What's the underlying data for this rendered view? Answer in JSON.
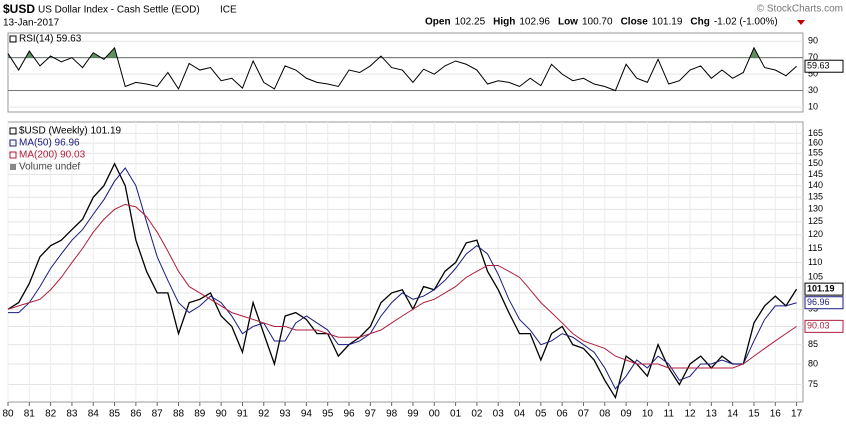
{
  "header": {
    "symbol": "$USD",
    "name": "US Dollar Index - Cash Settle (EOD)",
    "exchange": "ICE",
    "date": "13-Jan-2017",
    "quote": [
      {
        "label": "Open",
        "value": "102.25"
      },
      {
        "label": "High",
        "value": "102.96"
      },
      {
        "label": "Low",
        "value": "100.70"
      },
      {
        "label": "Close",
        "value": "101.19"
      },
      {
        "label": "Chg",
        "value": "-1.02 (-1.00%)"
      }
    ],
    "credit": "© StockCharts.com"
  },
  "chart_data": [
    {
      "type": "line",
      "title": "RSI(14) 59.63",
      "color": "#000000",
      "end_label": "59.63",
      "x": [
        1980,
        1980.5,
        1981,
        1981.5,
        1982,
        1982.5,
        1983,
        1983.5,
        1984,
        1984.5,
        1985,
        1985.5,
        1986,
        1986.5,
        1987,
        1987.5,
        1988,
        1988.5,
        1989,
        1989.5,
        1990,
        1990.5,
        1991,
        1991.5,
        1992,
        1992.5,
        1993,
        1993.5,
        1994,
        1994.5,
        1995,
        1995.5,
        1996,
        1996.5,
        1997,
        1997.5,
        1998,
        1998.5,
        1999,
        1999.5,
        2000,
        2000.5,
        2001,
        2001.5,
        2002,
        2002.5,
        2003,
        2003.5,
        2004,
        2004.5,
        2005,
        2005.5,
        2006,
        2006.5,
        2007,
        2007.5,
        2008,
        2008.5,
        2009,
        2009.5,
        2010,
        2010.5,
        2011,
        2011.5,
        2012,
        2012.5,
        2013,
        2013.5,
        2014,
        2014.5,
        2015,
        2015.5,
        2016,
        2016.5,
        2017
      ],
      "values": [
        75,
        55,
        78,
        60,
        72,
        65,
        70,
        58,
        76,
        68,
        82,
        35,
        40,
        38,
        35,
        52,
        32,
        63,
        55,
        58,
        42,
        45,
        33,
        66,
        40,
        32,
        60,
        55,
        45,
        40,
        38,
        35,
        55,
        52,
        60,
        72,
        58,
        55,
        40,
        56,
        50,
        60,
        66,
        62,
        55,
        38,
        42,
        40,
        35,
        45,
        36,
        62,
        50,
        42,
        45,
        38,
        35,
        30,
        62,
        45,
        40,
        68,
        38,
        42,
        55,
        60,
        45,
        55,
        45,
        52,
        82,
        58,
        55,
        48,
        59.63
      ],
      "xlim": [
        1980,
        2017.3
      ],
      "ylim": [
        4,
        100
      ],
      "yticks": [
        10,
        30,
        50,
        70,
        90
      ],
      "reference_lines": [
        30,
        70
      ],
      "overbought_fill": "#5f8f5f"
    },
    {
      "type": "line",
      "log_scale": true,
      "extra_legend": "Volume undef",
      "x": [
        1980,
        1980.5,
        1981,
        1981.5,
        1982,
        1982.5,
        1983,
        1983.5,
        1984,
        1984.5,
        1985,
        1985.5,
        1986,
        1986.5,
        1987,
        1987.5,
        1988,
        1988.5,
        1989,
        1989.5,
        1990,
        1990.5,
        1991,
        1991.5,
        1992,
        1992.5,
        1993,
        1993.5,
        1994,
        1994.5,
        1995,
        1995.5,
        1996,
        1996.5,
        1997,
        1997.5,
        1998,
        1998.5,
        1999,
        1999.5,
        2000,
        2000.5,
        2001,
        2001.5,
        2002,
        2002.5,
        2003,
        2003.5,
        2004,
        2004.5,
        2005,
        2005.5,
        2006,
        2006.5,
        2007,
        2007.5,
        2008,
        2008.5,
        2009,
        2009.5,
        2010,
        2010.5,
        2011,
        2011.5,
        2012,
        2012.5,
        2013,
        2013.5,
        2014,
        2014.5,
        2015,
        2015.5,
        2016,
        2016.5,
        2017
      ],
      "series": [
        {
          "name": "$USD (Weekly) 101.19",
          "color": "#000000",
          "end_label": "101.19",
          "values": [
            95,
            97,
            103,
            112,
            116,
            118,
            122,
            126,
            135,
            140,
            150,
            140,
            118,
            107,
            100,
            100,
            88,
            97,
            98,
            100,
            93,
            90,
            83,
            97,
            88,
            80,
            93,
            94,
            92,
            88,
            88,
            82,
            85,
            87,
            90,
            97,
            100,
            101,
            95,
            102,
            101,
            107,
            110,
            117,
            118,
            107,
            101,
            94,
            88,
            88,
            81,
            88,
            90,
            85,
            84,
            81,
            76,
            72,
            82,
            80,
            77,
            85,
            79,
            75,
            80,
            82,
            79,
            82,
            80,
            80,
            91,
            96,
            99,
            96,
            101.19
          ]
        },
        {
          "name": "MA(50) 96.96",
          "color": "#1a1a80",
          "end_label": "96.96",
          "values": [
            94,
            94,
            97,
            102,
            108,
            113,
            118,
            122,
            128,
            134,
            142,
            148,
            140,
            125,
            112,
            104,
            97,
            94,
            96,
            99,
            97,
            93,
            88,
            90,
            91,
            86,
            86,
            91,
            93,
            91,
            89,
            85,
            85,
            86,
            88,
            93,
            97,
            100,
            98,
            99,
            101,
            104,
            108,
            113,
            116,
            113,
            106,
            98,
            92,
            89,
            85,
            86,
            88,
            87,
            85,
            83,
            79,
            74,
            77,
            81,
            79,
            82,
            80,
            76,
            77,
            80,
            80,
            81,
            80,
            80,
            86,
            92,
            96,
            96,
            96.96
          ]
        },
        {
          "name": "MA(200) 90.03",
          "color": "#b01e3c",
          "end_label": "90.03",
          "values": [
            95,
            96,
            97,
            98,
            101,
            105,
            110,
            115,
            121,
            126,
            130,
            132,
            131,
            127,
            121,
            114,
            107,
            102,
            100,
            98,
            96,
            94,
            93,
            92,
            91,
            90,
            90,
            89,
            89,
            89,
            88,
            87,
            87,
            87,
            88,
            89,
            91,
            93,
            95,
            97,
            98,
            100,
            102,
            105,
            107,
            109,
            109,
            107,
            105,
            101,
            97,
            94,
            91,
            88,
            86,
            85,
            84,
            82,
            81,
            80,
            80,
            80,
            79,
            79,
            79,
            79,
            79,
            79,
            79,
            80,
            82,
            84,
            86,
            88,
            90.03
          ]
        }
      ],
      "xlim": [
        1980,
        2017.3
      ],
      "ylim": [
        71,
        171
      ],
      "yticks": [
        75,
        80,
        85,
        90,
        95,
        100,
        105,
        110,
        115,
        120,
        125,
        130,
        135,
        140,
        145,
        150,
        155,
        160,
        165
      ],
      "xticks": [
        {
          "value": 1980,
          "label": "80"
        },
        {
          "value": 1981,
          "label": "81"
        },
        {
          "value": 1982,
          "label": "82"
        },
        {
          "value": 1983,
          "label": "83"
        },
        {
          "value": 1984,
          "label": "84"
        },
        {
          "value": 1985,
          "label": "85"
        },
        {
          "value": 1986,
          "label": "86"
        },
        {
          "value": 1987,
          "label": "87"
        },
        {
          "value": 1988,
          "label": "88"
        },
        {
          "value": 1989,
          "label": "89"
        },
        {
          "value": 1990,
          "label": "90"
        },
        {
          "value": 1991,
          "label": "91"
        },
        {
          "value": 1992,
          "label": "92"
        },
        {
          "value": 1993,
          "label": "93"
        },
        {
          "value": 1994,
          "label": "94"
        },
        {
          "value": 1995,
          "label": "95"
        },
        {
          "value": 1996,
          "label": "96"
        },
        {
          "value": 1997,
          "label": "97"
        },
        {
          "value": 1998,
          "label": "98"
        },
        {
          "value": 1999,
          "label": "99"
        },
        {
          "value": 2000,
          "label": "00"
        },
        {
          "value": 2001,
          "label": "01"
        },
        {
          "value": 2002,
          "label": "02"
        },
        {
          "value": 2003,
          "label": "03"
        },
        {
          "value": 2004,
          "label": "04"
        },
        {
          "value": 2005,
          "label": "05"
        },
        {
          "value": 2006,
          "label": "06"
        },
        {
          "value": 2007,
          "label": "07"
        },
        {
          "value": 2008,
          "label": "08"
        },
        {
          "value": 2009,
          "label": "09"
        },
        {
          "value": 2010,
          "label": "10"
        },
        {
          "value": 2011,
          "label": "11"
        },
        {
          "value": 2012,
          "label": "12"
        },
        {
          "value": 2013,
          "label": "13"
        },
        {
          "value": 2014,
          "label": "14"
        },
        {
          "value": 2015,
          "label": "15"
        },
        {
          "value": 2016,
          "label": "16"
        },
        {
          "value": 2017,
          "label": "17"
        }
      ]
    }
  ]
}
